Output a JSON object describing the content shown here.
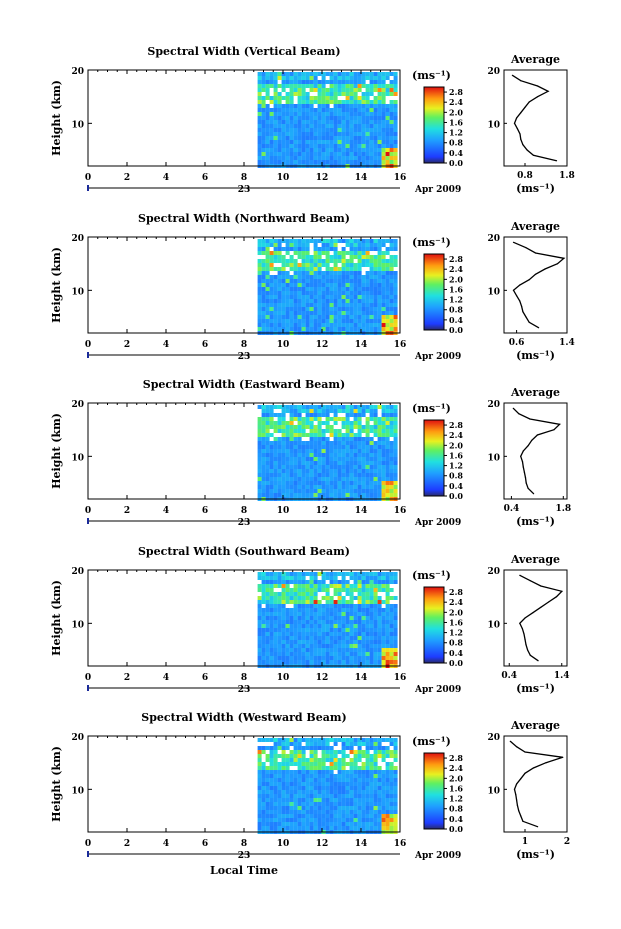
{
  "figure": {
    "xlabel": "Local Time",
    "date_label": "Apr 2009",
    "day_label": "23",
    "colorbar_unit": "(ms⁻¹)",
    "avg_unit": "(ms⁻¹)",
    "avg_title": "Average",
    "ylabel": "Height (km)"
  },
  "chart_data": [
    {
      "type": "heatmap",
      "title": "Spectral Width (Vertical Beam)",
      "xlabel": "",
      "ylabel": "Height (km)",
      "xlim": [
        0,
        16
      ],
      "ylim": [
        2,
        20
      ],
      "xticks": [
        "0",
        "2",
        "4",
        "6",
        "8",
        "10",
        "12",
        "14",
        "16"
      ],
      "yticks": [
        "10",
        "20"
      ],
      "data_start_hour": 8.7,
      "colorbar": {
        "unit": "(ms⁻¹)",
        "range": [
          0,
          3.0
        ],
        "ticks": [
          "0.0",
          "0.4",
          "0.8",
          "1.2",
          "1.6",
          "2.0",
          "2.4",
          "2.8"
        ]
      },
      "average_profile": {
        "title": "Average",
        "xlim": [
          0.3,
          1.8
        ],
        "xticks": [
          "0.8",
          "1.8"
        ],
        "yticks": [
          "10",
          "20"
        ],
        "heights": [
          3,
          4,
          5,
          6,
          7,
          8,
          9,
          10,
          11,
          12,
          13,
          14,
          15,
          16,
          17,
          18,
          19
        ],
        "values": [
          1.55,
          1.0,
          0.85,
          0.75,
          0.7,
          0.68,
          0.62,
          0.55,
          0.6,
          0.7,
          0.8,
          0.9,
          1.1,
          1.35,
          1.1,
          0.7,
          0.5
        ]
      }
    },
    {
      "type": "heatmap",
      "title": "Spectral Width (Northward Beam)",
      "xlabel": "",
      "ylabel": "Height (km)",
      "xlim": [
        0,
        16
      ],
      "ylim": [
        2,
        20
      ],
      "xticks": [
        "0",
        "2",
        "4",
        "6",
        "8",
        "10",
        "12",
        "14",
        "16"
      ],
      "yticks": [
        "10",
        "20"
      ],
      "data_start_hour": 8.7,
      "colorbar": {
        "unit": "(ms⁻¹)",
        "range": [
          0,
          3.0
        ],
        "ticks": [
          "0.0",
          "0.4",
          "0.8",
          "1.2",
          "1.6",
          "2.0",
          "2.4",
          "2.8"
        ]
      },
      "average_profile": {
        "title": "Average",
        "xlim": [
          0.4,
          1.4
        ],
        "xticks": [
          "0.6",
          "1.4"
        ],
        "yticks": [
          "10",
          "20"
        ],
        "heights": [
          3,
          4,
          5,
          6,
          7,
          8,
          9,
          10,
          11,
          12,
          13,
          14,
          15,
          16,
          17,
          18,
          19
        ],
        "values": [
          0.95,
          0.8,
          0.75,
          0.7,
          0.68,
          0.65,
          0.6,
          0.55,
          0.65,
          0.8,
          0.9,
          1.05,
          1.25,
          1.35,
          0.9,
          0.75,
          0.55
        ]
      }
    },
    {
      "type": "heatmap",
      "title": "Spectral Width (Eastward Beam)",
      "xlabel": "",
      "ylabel": "Height (km)",
      "xlim": [
        0,
        16
      ],
      "ylim": [
        2,
        20
      ],
      "xticks": [
        "0",
        "2",
        "4",
        "6",
        "8",
        "10",
        "12",
        "14",
        "16"
      ],
      "yticks": [
        "10",
        "20"
      ],
      "data_start_hour": 8.7,
      "colorbar": {
        "unit": "(ms⁻¹)",
        "range": [
          0,
          3.0
        ],
        "ticks": [
          "0.0",
          "0.4",
          "0.8",
          "1.2",
          "1.6",
          "2.0",
          "2.4",
          "2.8"
        ]
      },
      "average_profile": {
        "title": "Average",
        "xlim": [
          0.2,
          1.9
        ],
        "xticks": [
          "0.4",
          "1.8"
        ],
        "yticks": [
          "10",
          "20"
        ],
        "heights": [
          3,
          4,
          5,
          6,
          7,
          8,
          9,
          10,
          11,
          12,
          13,
          14,
          15,
          16,
          17,
          18,
          19
        ],
        "values": [
          1.0,
          0.85,
          0.8,
          0.78,
          0.75,
          0.72,
          0.7,
          0.65,
          0.72,
          0.85,
          0.95,
          1.1,
          1.55,
          1.7,
          0.9,
          0.6,
          0.45
        ]
      }
    },
    {
      "type": "heatmap",
      "title": "Spectral Width (Southward Beam)",
      "xlabel": "",
      "ylabel": "Height (km)",
      "xlim": [
        0,
        16
      ],
      "ylim": [
        2,
        20
      ],
      "xticks": [
        "0",
        "2",
        "4",
        "6",
        "8",
        "10",
        "12",
        "14",
        "16"
      ],
      "yticks": [
        "10",
        "20"
      ],
      "data_start_hour": 8.7,
      "colorbar": {
        "unit": "(ms⁻¹)",
        "range": [
          0,
          3.0
        ],
        "ticks": [
          "0.0",
          "0.4",
          "0.8",
          "1.2",
          "1.6",
          "2.0",
          "2.4",
          "2.8"
        ]
      },
      "average_profile": {
        "title": "Average",
        "xlim": [
          0.3,
          1.5
        ],
        "xticks": [
          "0.4",
          "1.4"
        ],
        "yticks": [
          "10",
          "20"
        ],
        "heights": [
          3,
          4,
          5,
          6,
          7,
          8,
          9,
          10,
          11,
          12,
          13,
          14,
          15,
          16,
          17,
          18,
          19
        ],
        "values": [
          0.95,
          0.8,
          0.75,
          0.72,
          0.7,
          0.68,
          0.65,
          0.6,
          0.7,
          0.85,
          1.0,
          1.15,
          1.3,
          1.4,
          1.0,
          0.8,
          0.6
        ]
      }
    },
    {
      "type": "heatmap",
      "title": "Spectral Width (Westward Beam)",
      "xlabel": "Local Time",
      "ylabel": "Height (km)",
      "xlim": [
        0,
        16
      ],
      "ylim": [
        2,
        20
      ],
      "xticks": [
        "0",
        "2",
        "4",
        "6",
        "8",
        "10",
        "12",
        "14",
        "16"
      ],
      "yticks": [
        "10",
        "20"
      ],
      "data_start_hour": 8.7,
      "colorbar": {
        "unit": "(ms⁻¹)",
        "range": [
          0,
          3.0
        ],
        "ticks": [
          "0.0",
          "0.4",
          "0.8",
          "1.2",
          "1.6",
          "2.0",
          "2.4",
          "2.8"
        ]
      },
      "average_profile": {
        "title": "Average",
        "xlim": [
          0.5,
          2.0
        ],
        "xticks": [
          "1",
          "2"
        ],
        "yticks": [
          "10",
          "20"
        ],
        "heights": [
          3,
          4,
          5,
          6,
          7,
          8,
          9,
          10,
          11,
          12,
          13,
          14,
          15,
          16,
          17,
          18,
          19
        ],
        "values": [
          1.3,
          0.95,
          0.9,
          0.85,
          0.82,
          0.8,
          0.78,
          0.75,
          0.8,
          0.9,
          1.0,
          1.2,
          1.5,
          1.9,
          1.0,
          0.8,
          0.65
        ]
      }
    }
  ]
}
